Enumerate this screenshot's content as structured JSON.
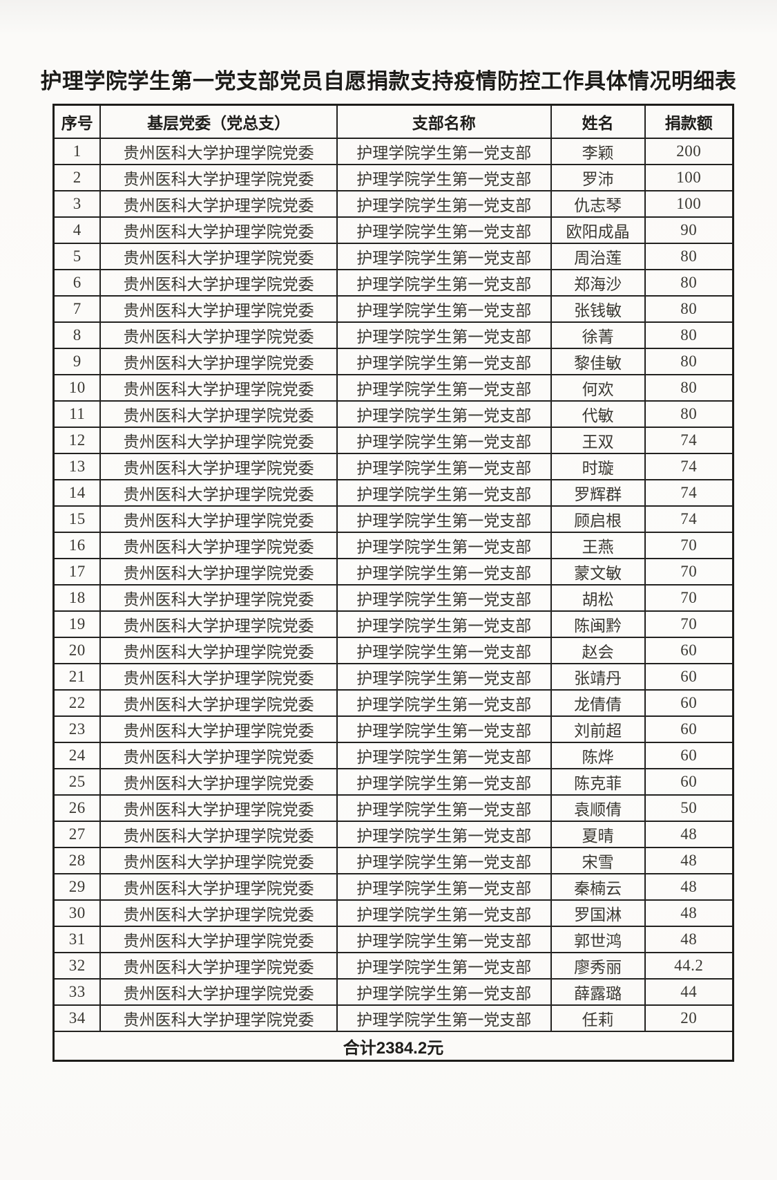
{
  "page_title": "护理学院学生第一党支部党员自愿捐款支持疫情防控工作具体情况明细表",
  "table": {
    "headers": [
      "序号",
      "基层党委（党总支）",
      "支部名称",
      "姓名",
      "捐款额"
    ],
    "committee": "贵州医科大学护理学院党委",
    "branch": "护理学院学生第一党支部",
    "rows": [
      {
        "no": "1",
        "name": "李颖",
        "amount": "200"
      },
      {
        "no": "2",
        "name": "罗沛",
        "amount": "100"
      },
      {
        "no": "3",
        "name": "仇志琴",
        "amount": "100"
      },
      {
        "no": "4",
        "name": "欧阳成晶",
        "amount": "90"
      },
      {
        "no": "5",
        "name": "周治莲",
        "amount": "80"
      },
      {
        "no": "6",
        "name": "郑海沙",
        "amount": "80"
      },
      {
        "no": "7",
        "name": "张钱敏",
        "amount": "80"
      },
      {
        "no": "8",
        "name": "徐菁",
        "amount": "80"
      },
      {
        "no": "9",
        "name": "黎佳敏",
        "amount": "80"
      },
      {
        "no": "10",
        "name": "何欢",
        "amount": "80"
      },
      {
        "no": "11",
        "name": "代敏",
        "amount": "80"
      },
      {
        "no": "12",
        "name": "王双",
        "amount": "74"
      },
      {
        "no": "13",
        "name": "时璇",
        "amount": "74"
      },
      {
        "no": "14",
        "name": "罗辉群",
        "amount": "74"
      },
      {
        "no": "15",
        "name": "顾启根",
        "amount": "74"
      },
      {
        "no": "16",
        "name": "王燕",
        "amount": "70"
      },
      {
        "no": "17",
        "name": "蒙文敏",
        "amount": "70"
      },
      {
        "no": "18",
        "name": "胡松",
        "amount": "70"
      },
      {
        "no": "19",
        "name": "陈闽黔",
        "amount": "70"
      },
      {
        "no": "20",
        "name": "赵会",
        "amount": "60"
      },
      {
        "no": "21",
        "name": "张靖丹",
        "amount": "60"
      },
      {
        "no": "22",
        "name": "龙倩倩",
        "amount": "60"
      },
      {
        "no": "23",
        "name": "刘前超",
        "amount": "60"
      },
      {
        "no": "24",
        "name": "陈烨",
        "amount": "60"
      },
      {
        "no": "25",
        "name": "陈克菲",
        "amount": "60"
      },
      {
        "no": "26",
        "name": "袁顺倩",
        "amount": "50"
      },
      {
        "no": "27",
        "name": "夏晴",
        "amount": "48"
      },
      {
        "no": "28",
        "name": "宋雪",
        "amount": "48"
      },
      {
        "no": "29",
        "name": "秦楠云",
        "amount": "48"
      },
      {
        "no": "30",
        "name": "罗国淋",
        "amount": "48"
      },
      {
        "no": "31",
        "name": "郭世鸿",
        "amount": "48"
      },
      {
        "no": "32",
        "name": "廖秀丽",
        "amount": "44.2"
      },
      {
        "no": "33",
        "name": "薛露璐",
        "amount": "44"
      },
      {
        "no": "34",
        "name": "任莉",
        "amount": "20"
      }
    ],
    "total_label": "合计2384.2元"
  }
}
